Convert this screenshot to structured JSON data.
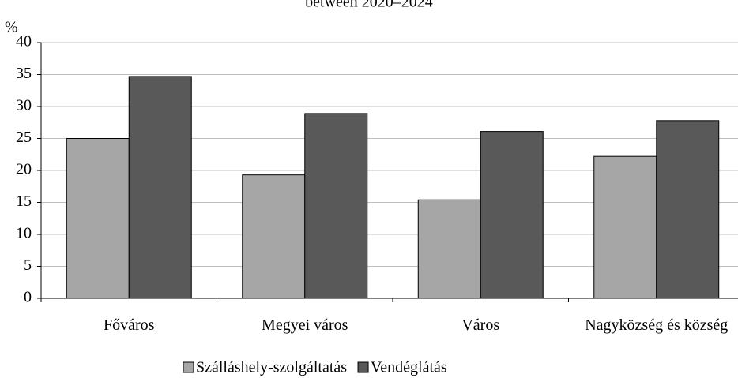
{
  "chart_data": {
    "type": "bar",
    "title": "between 2020–2024",
    "y_label": "%",
    "categories": [
      "Főváros",
      "Megyei város",
      "Város",
      "Nagyközség és község"
    ],
    "series": [
      {
        "name": "Szálláshely-szolgáltatás",
        "color": "#a6a6a6",
        "values": [
          25.0,
          19.3,
          15.4,
          22.2
        ]
      },
      {
        "name": "Vendéglátás",
        "color": "#595959",
        "values": [
          34.7,
          28.9,
          26.1,
          27.8
        ]
      }
    ],
    "ylim": [
      0,
      40
    ],
    "yticks": [
      0,
      5,
      10,
      15,
      20,
      25,
      30,
      35,
      40
    ],
    "grid": true,
    "legend": "bottom"
  }
}
